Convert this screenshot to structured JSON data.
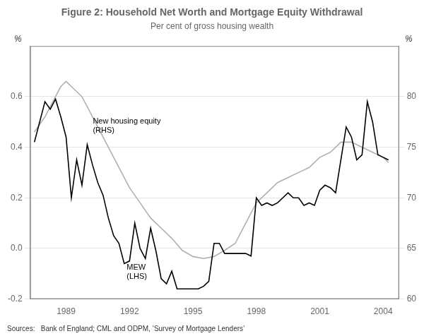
{
  "chart_data": {
    "type": "line",
    "title": "Figure 2: Household Net Worth and Mortgage Equity Withdrawal",
    "subtitle": "Per cent of gross housing wealth",
    "sources": "Sources:   Bank of England; CML and ODPM, ‘Survey of Mortgage Lenders’",
    "ylabel": "%",
    "y2label": "%",
    "xlim": [
      1987.3,
      2004.75
    ],
    "xticks": [
      1989,
      1992,
      1995,
      1998,
      2001,
      2004
    ],
    "ylim": [
      -0.2,
      0.8
    ],
    "yticks": [
      -0.2,
      {
        "value": 0.0,
        "label": "0.0"
      },
      0.2,
      0.4,
      0.6
    ],
    "y2lim": [
      60,
      85
    ],
    "y2ticks": [
      60,
      65,
      70,
      75,
      80
    ],
    "grid": true,
    "annotations": [
      {
        "text": "MEW\n(LHS)",
        "x": 1991.8,
        "y": -0.055
      },
      {
        "text": "New housing equity\n(RHS)",
        "x": 1990.2,
        "y": 0.44
      }
    ],
    "series": [
      {
        "axis": "y2",
        "color": "#b0b0b0",
        "x": [
          1987.5,
          1988.0,
          1988.25,
          1988.5,
          1988.75,
          1989.0,
          1989.25,
          1989.5,
          1989.75,
          1990.0,
          1990.25,
          1990.5,
          1990.75,
          1991.0,
          1991.25,
          1991.5,
          1991.75,
          1992.0,
          1992.5,
          1993.0,
          1993.5,
          1994.0,
          1994.5,
          1995.0,
          1995.5,
          1996.0,
          1996.5,
          1997.0,
          1997.5,
          1998.0,
          1998.5,
          1999.0,
          1999.5,
          2000.0,
          2000.5,
          2001.0,
          2001.5,
          2002.0,
          2002.5,
          2003.0,
          2003.5,
          2004.0,
          2004.25
        ],
        "values": [
          76.5,
          78.0,
          79.0,
          80.0,
          81.0,
          81.5,
          81.0,
          80.5,
          80.0,
          79.0,
          78.0,
          77.0,
          76.0,
          75.0,
          74.0,
          73.0,
          72.0,
          71.0,
          69.5,
          68.0,
          67.0,
          66.0,
          64.8,
          64.2,
          64.0,
          64.2,
          64.8,
          65.5,
          67.5,
          69.5,
          70.5,
          71.5,
          72.0,
          72.5,
          73.0,
          74.0,
          74.5,
          75.5,
          75.5,
          75.0,
          74.5,
          74.0,
          73.5
        ]
      },
      {
        "axis": "y",
        "color": "#000000",
        "x": [
          1987.5,
          1988.0,
          1988.25,
          1988.5,
          1988.75,
          1989.0,
          1989.25,
          1989.5,
          1989.75,
          1990.0,
          1990.25,
          1990.5,
          1990.75,
          1991.0,
          1991.25,
          1991.5,
          1991.75,
          1992.0,
          1992.25,
          1992.5,
          1992.75,
          1993.0,
          1993.25,
          1993.5,
          1993.75,
          1994.0,
          1994.25,
          1994.5,
          1994.75,
          1995.0,
          1995.25,
          1995.5,
          1995.75,
          1996.0,
          1996.25,
          1996.5,
          1996.75,
          1997.0,
          1997.25,
          1997.5,
          1997.75,
          1998.0,
          1998.25,
          1998.5,
          1998.75,
          1999.0,
          1999.25,
          1999.5,
          1999.75,
          2000.0,
          2000.25,
          2000.5,
          2000.75,
          2001.0,
          2001.25,
          2001.5,
          2001.75,
          2002.0,
          2002.25,
          2002.5,
          2002.75,
          2003.0,
          2003.25,
          2003.5,
          2003.75,
          2004.0,
          2004.25
        ],
        "values": [
          0.42,
          0.58,
          0.55,
          0.59,
          0.52,
          0.44,
          0.2,
          0.35,
          0.25,
          0.41,
          0.33,
          0.26,
          0.21,
          0.12,
          0.05,
          0.02,
          -0.06,
          -0.05,
          0.1,
          0.0,
          -0.04,
          0.08,
          -0.01,
          -0.12,
          -0.14,
          -0.09,
          -0.16,
          -0.16,
          -0.16,
          -0.16,
          -0.16,
          -0.15,
          -0.13,
          0.02,
          0.02,
          -0.02,
          -0.02,
          -0.02,
          -0.02,
          -0.02,
          -0.03,
          0.2,
          0.17,
          0.18,
          0.17,
          0.18,
          0.2,
          0.22,
          0.2,
          0.2,
          0.17,
          0.18,
          0.17,
          0.23,
          0.25,
          0.24,
          0.22,
          0.35,
          0.48,
          0.44,
          0.35,
          0.37,
          0.58,
          0.5,
          0.37,
          0.36,
          0.35
        ]
      }
    ]
  }
}
